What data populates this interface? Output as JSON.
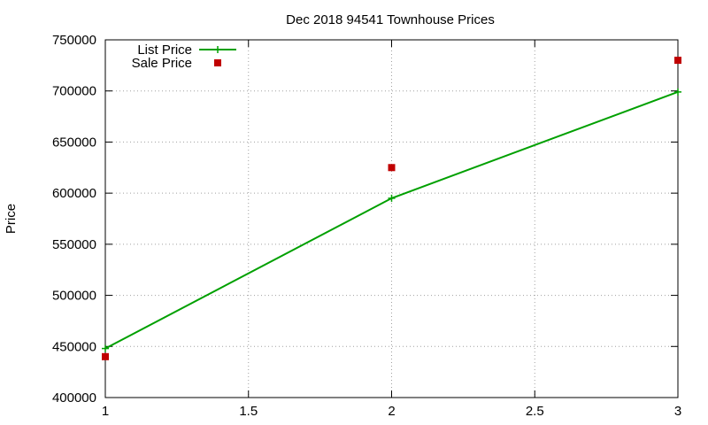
{
  "chart_data": {
    "type": "line",
    "title": "Dec 2018 94541 Townhouse Prices",
    "xlabel": "",
    "ylabel": "Price",
    "xlim": [
      1,
      3
    ],
    "ylim": [
      400000,
      750000
    ],
    "x_ticks": [
      "1",
      "1.5",
      "2",
      "2.5",
      "3"
    ],
    "y_ticks": [
      "400000",
      "450000",
      "500000",
      "550000",
      "600000",
      "650000",
      "700000",
      "750000"
    ],
    "grid": true,
    "legend_position": "top-left",
    "series": [
      {
        "name": "List Price",
        "style": "line-with-plus-markers",
        "color": "#00a000",
        "x": [
          1,
          2,
          3
        ],
        "y": [
          448000,
          595000,
          699000
        ]
      },
      {
        "name": "Sale Price",
        "style": "square-markers",
        "color": "#c00000",
        "x": [
          1,
          2,
          3
        ],
        "y": [
          440000,
          625000,
          730000
        ]
      }
    ]
  }
}
